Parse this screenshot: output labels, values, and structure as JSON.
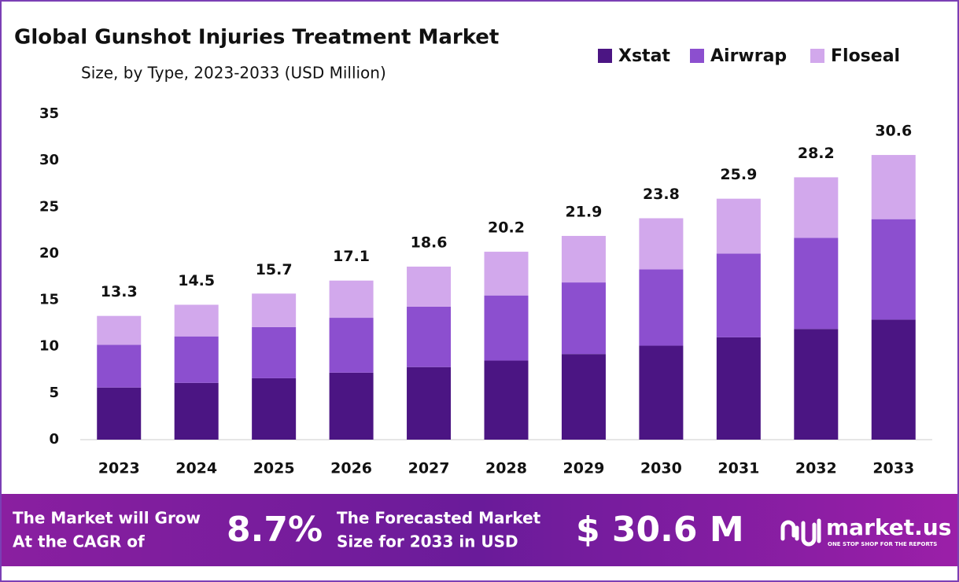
{
  "chart_data": {
    "type": "stacked_bar",
    "title": "Global Gunshot Injuries Treatment Market",
    "subtitle": "Size, by Type, 2023-2033 (USD Million)",
    "categories": [
      "2023",
      "2024",
      "2025",
      "2026",
      "2027",
      "2028",
      "2029",
      "2030",
      "2031",
      "2032",
      "2033"
    ],
    "series": [
      {
        "name": "Xstat",
        "color": "#4b1583",
        "values": [
          5.6,
          6.1,
          6.6,
          7.2,
          7.8,
          8.5,
          9.2,
          10.1,
          11.0,
          11.9,
          12.9
        ]
      },
      {
        "name": "Airwrap",
        "color": "#8c4fcf",
        "values": [
          4.6,
          5.0,
          5.5,
          5.9,
          6.5,
          7.0,
          7.7,
          8.2,
          9.0,
          9.8,
          10.8
        ]
      },
      {
        "name": "Floseal",
        "color": "#d2a8ec",
        "values": [
          3.1,
          3.4,
          3.6,
          4.0,
          4.3,
          4.7,
          5.0,
          5.5,
          5.9,
          6.5,
          6.9
        ]
      }
    ],
    "totals": [
      13.3,
      14.5,
      15.7,
      17.1,
      18.6,
      20.2,
      21.9,
      23.8,
      25.9,
      28.2,
      30.6
    ],
    "ylim": [
      0,
      35
    ],
    "yticks": [
      0,
      5,
      10,
      15,
      20,
      25,
      30,
      35
    ],
    "grid": false,
    "legend": "top-right"
  },
  "banner": {
    "cagr_text": [
      "The Market will Grow",
      "At the CAGR of"
    ],
    "cagr": "8.7%",
    "forecast_text": [
      "The Forecasted Market",
      "Size for 2033 in USD"
    ],
    "forecast": "$ 30.6 M",
    "logo": "market.us",
    "tagline": "ONE STOP SHOP FOR THE REPORTS"
  }
}
